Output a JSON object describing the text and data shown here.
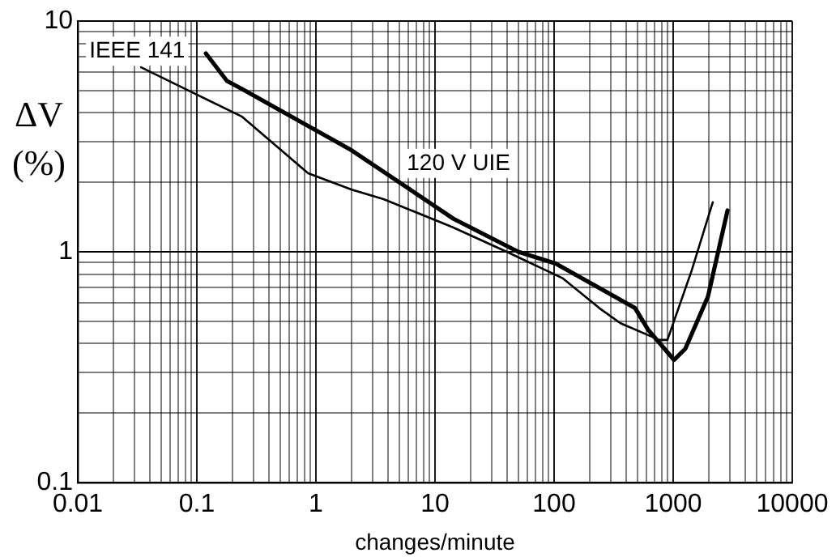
{
  "chart_data": {
    "type": "line",
    "xlabel": "changes/minute",
    "ylabel": "ΔV (%)",
    "log": "xy",
    "xlim": [
      0.01,
      10000
    ],
    "xticks": [
      0.01,
      0.1,
      1,
      10,
      100,
      1000,
      10000
    ],
    "ylim": [
      0.1,
      10
    ],
    "yticks": [
      0.1,
      1,
      10
    ],
    "grid": true,
    "legend": false,
    "marker": "none",
    "line_style": "solid",
    "series": [
      {
        "name": "IEEE 141",
        "color": "#000000",
        "x": [
          0.034,
          0.1,
          0.24,
          0.86,
          2.0,
          3.7,
          14,
          40,
          117,
          240,
          361,
          766,
          895,
          1430,
          2150
        ],
        "values": [
          6.3,
          4.8,
          3.85,
          2.19,
          1.86,
          1.69,
          1.28,
          1.0,
          0.77,
          0.57,
          0.49,
          0.415,
          0.415,
          0.83,
          1.64
        ]
      },
      {
        "name": "120 V UIE",
        "color": "#000000",
        "x": [
          0.119,
          0.179,
          0.24,
          2.0,
          14.3,
          50,
          103,
          479,
          615,
          1016,
          1265,
          1960,
          2860
        ],
        "values": [
          7.24,
          5.5,
          5.07,
          2.75,
          1.39,
          1.0,
          0.89,
          0.57,
          0.46,
          0.34,
          0.38,
          0.64,
          1.51
        ]
      }
    ]
  }
}
